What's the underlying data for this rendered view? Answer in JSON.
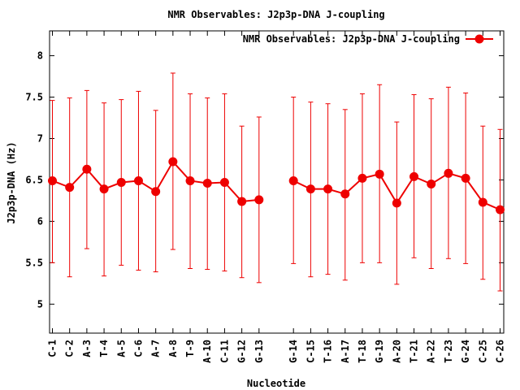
{
  "chart_data": {
    "type": "line",
    "title": "NMR Observables: J2p3p-DNA J-coupling",
    "xlabel": "Nucleotide",
    "ylabel": "J2p3p-DNA (Hz)",
    "ylim": [
      4.65,
      8.3
    ],
    "yticks": [
      "5",
      "5.5",
      "6",
      "6.5",
      "7",
      "7.5",
      "8"
    ],
    "grid": false,
    "legend_position": "top-right",
    "line_color": "#ee0000",
    "categories": [
      "C-1",
      "C-2",
      "A-3",
      "T-4",
      "A-5",
      "C-6",
      "A-7",
      "A-8",
      "T-9",
      "A-10",
      "C-11",
      "G-12",
      "G-13",
      "G-14",
      "C-15",
      "T-16",
      "A-17",
      "T-18",
      "G-19",
      "A-20",
      "T-21",
      "A-22",
      "T-23",
      "G-24",
      "C-25",
      "C-26"
    ],
    "series": [
      {
        "name": "NMR Observables: J2p3p-DNA J-coupling",
        "x": [
          1,
          2,
          3,
          4,
          5,
          6,
          7,
          8,
          9,
          10,
          11,
          12,
          13,
          15,
          16,
          17,
          18,
          19,
          20,
          21,
          22,
          23,
          24,
          25,
          26,
          27
        ],
        "values": [
          6.49,
          6.41,
          6.63,
          6.39,
          6.47,
          6.49,
          6.36,
          6.72,
          6.49,
          6.46,
          6.47,
          6.24,
          6.26,
          6.49,
          6.39,
          6.39,
          6.33,
          6.52,
          6.57,
          6.22,
          6.54,
          6.45,
          6.58,
          6.52,
          6.23,
          6.14
        ],
        "err_low": [
          5.5,
          5.33,
          5.67,
          5.34,
          5.47,
          5.41,
          5.39,
          5.66,
          5.43,
          5.42,
          5.4,
          5.32,
          5.26,
          5.49,
          5.33,
          5.36,
          5.29,
          5.5,
          5.5,
          5.24,
          5.56,
          5.43,
          5.55,
          5.49,
          5.3,
          5.16
        ],
        "err_high": [
          7.46,
          7.49,
          7.58,
          7.43,
          7.47,
          7.57,
          7.34,
          7.79,
          7.54,
          7.49,
          7.54,
          7.15,
          7.26,
          7.5,
          7.44,
          7.42,
          7.35,
          7.54,
          7.65,
          7.2,
          7.53,
          7.48,
          7.62,
          7.55,
          7.15,
          7.11
        ]
      }
    ]
  }
}
